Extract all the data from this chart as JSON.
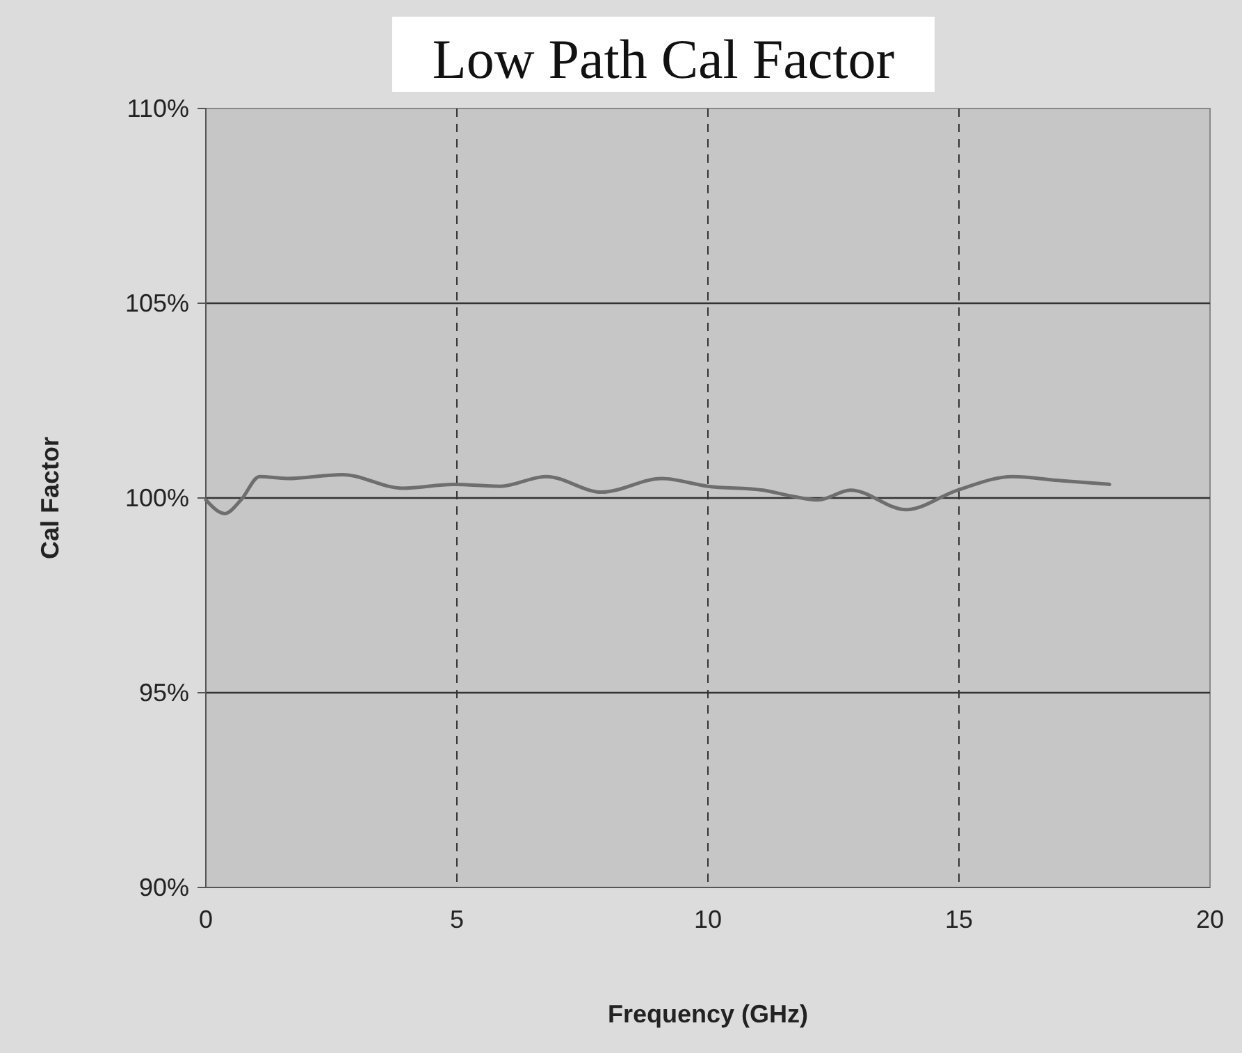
{
  "chart_data": {
    "type": "line",
    "title": "Low Path Cal Factor",
    "xlabel": "Frequency (GHz)",
    "ylabel": "Cal Factor",
    "x": [
      0,
      0.38,
      0.7,
      1.07,
      1.62,
      2.72,
      3.92,
      4.93,
      5.86,
      6.78,
      7.88,
      9.08,
      10.0,
      11.1,
      11.66,
      12.2,
      12.84,
      13.95,
      14.97,
      16.07,
      16.98,
      18.0
    ],
    "values": [
      99.95,
      99.6,
      99.95,
      100.55,
      100.5,
      100.6,
      100.25,
      100.35,
      100.3,
      100.55,
      100.15,
      100.5,
      100.3,
      100.2,
      100.05,
      99.95,
      100.2,
      99.7,
      100.2,
      100.55,
      100.45,
      100.35
    ],
    "color": "#6e6e6e",
    "xlim": [
      0,
      20
    ],
    "xticks": [
      0,
      5,
      10,
      15,
      20
    ],
    "ylim": [
      90,
      110
    ],
    "yticks": [
      {
        "value": 90,
        "label": "90%"
      },
      {
        "value": 95,
        "label": "95%"
      },
      {
        "value": 100,
        "label": "100%"
      },
      {
        "value": 105,
        "label": "105%"
      },
      {
        "value": 110,
        "label": "110%"
      }
    ],
    "grid": true,
    "marker": "none",
    "line_style": "solid"
  }
}
